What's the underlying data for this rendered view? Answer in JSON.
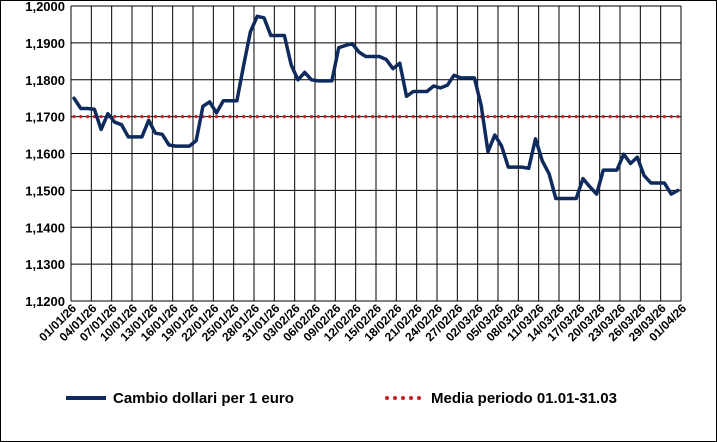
{
  "chart_data": {
    "type": "line",
    "y_ticks": [
      "1,1200",
      "1,1300",
      "1,1400",
      "1,1500",
      "1,1600",
      "1,1700",
      "1,1800",
      "1,1900",
      "1,2000"
    ],
    "ylim": [
      1.12,
      1.2
    ],
    "x_tick_labels": [
      "01/01/26",
      "04/01/26",
      "07/01/26",
      "10/01/26",
      "13/01/26",
      "16/01/26",
      "19/01/26",
      "22/01/26",
      "25/01/26",
      "28/01/26",
      "31/01/26",
      "03/02/26",
      "06/02/26",
      "09/02/26",
      "12/02/26",
      "15/02/26",
      "18/02/26",
      "21/02/26",
      "24/02/26",
      "27/02/26",
      "02/03/26",
      "05/03/26",
      "08/03/26",
      "11/03/26",
      "14/03/26",
      "17/03/26",
      "20/03/26",
      "23/03/26",
      "26/03/26",
      "29/03/26",
      "01/04/26"
    ],
    "grid": true,
    "legend_position": "bottom",
    "series": [
      {
        "name": "Cambio dollari per 1 euro",
        "color": "#0f2a5c",
        "style": "solid",
        "values": [
          1.175,
          1.1722,
          1.1722,
          1.172,
          1.1665,
          1.1708,
          1.1685,
          1.1678,
          1.1645,
          1.1645,
          1.1645,
          1.169,
          1.1655,
          1.1652,
          1.1623,
          1.162,
          1.162,
          1.162,
          1.1635,
          1.1728,
          1.174,
          1.171,
          1.1743,
          1.1743,
          1.1743,
          1.184,
          1.193,
          1.1972,
          1.1968,
          1.192,
          1.192,
          1.192,
          1.184,
          1.18,
          1.182,
          1.18,
          1.1797,
          1.1797,
          1.1797,
          1.1887,
          1.1893,
          1.1898,
          1.1875,
          1.1863,
          1.1863,
          1.1863,
          1.1855,
          1.183,
          1.1845,
          1.1755,
          1.1768,
          1.1768,
          1.1768,
          1.1783,
          1.1778,
          1.1785,
          1.1812,
          1.1805,
          1.1805,
          1.1805,
          1.173,
          1.1605,
          1.165,
          1.162,
          1.1563,
          1.1563,
          1.1563,
          1.156,
          1.164,
          1.158,
          1.1545,
          1.1478,
          1.1478,
          1.1478,
          1.1478,
          1.1532,
          1.151,
          1.149,
          1.1555,
          1.1555,
          1.1555,
          1.1598,
          1.1573,
          1.159,
          1.154,
          1.152,
          1.152,
          1.152,
          1.149,
          1.15
        ]
      },
      {
        "name": "Media periodo 01.01-31.03",
        "color": "#cc2222",
        "style": "dotted",
        "value": 1.17
      }
    ]
  }
}
